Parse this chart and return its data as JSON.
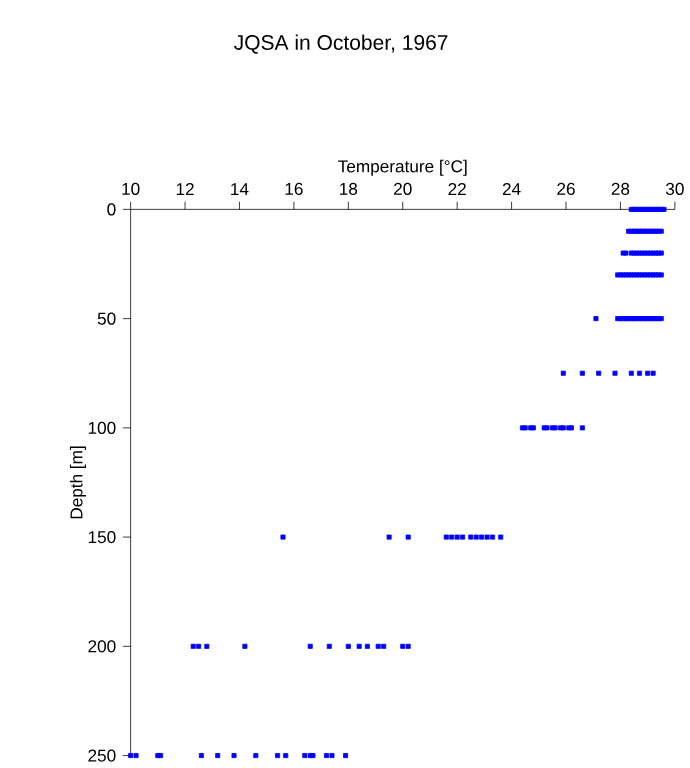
{
  "chart_data": {
    "type": "scatter",
    "title": "JQSA in October, 1967",
    "xlabel": "Temperature [°C]",
    "ylabel": "Depth [m]",
    "xlim": [
      10,
      30
    ],
    "xticks": [
      10,
      12,
      14,
      16,
      18,
      20,
      22,
      24,
      26,
      28,
      30
    ],
    "ylim": [
      250,
      0
    ],
    "yticks": [
      0,
      50,
      100,
      150,
      200,
      250
    ],
    "marker": "square",
    "series": [
      {
        "color": "#0000ff",
        "x": [
          28.4,
          28.5,
          28.6,
          28.7,
          28.8,
          28.9,
          29.0,
          29.1,
          29.2,
          29.3,
          29.4,
          29.5,
          29.6,
          28.3,
          28.4,
          28.5,
          28.6,
          28.7,
          28.8,
          28.9,
          29.0,
          29.1,
          29.2,
          29.3,
          29.4,
          29.5,
          28.1,
          28.2,
          28.4,
          28.5,
          28.6,
          28.7,
          28.8,
          28.9,
          29.0,
          29.1,
          29.2,
          29.3,
          29.4,
          29.5,
          27.9,
          28.0,
          28.1,
          28.2,
          28.3,
          28.4,
          28.5,
          28.6,
          28.7,
          28.8,
          28.9,
          29.0,
          29.1,
          29.2,
          29.3,
          29.4,
          29.5,
          27.1,
          27.9,
          28.0,
          28.1,
          28.2,
          28.3,
          28.4,
          28.5,
          28.6,
          28.7,
          28.8,
          28.9,
          29.0,
          29.1,
          29.2,
          29.3,
          29.4,
          29.5,
          25.9,
          26.6,
          27.2,
          27.8,
          28.4,
          28.7,
          29.0,
          29.2,
          24.4,
          24.5,
          24.7,
          24.8,
          25.2,
          25.3,
          25.5,
          25.6,
          25.8,
          25.9,
          26.1,
          26.2,
          26.6,
          15.6,
          19.5,
          20.2,
          21.6,
          21.8,
          22.0,
          22.2,
          22.5,
          22.7,
          22.9,
          23.1,
          23.3,
          23.6,
          12.3,
          12.5,
          12.8,
          14.2,
          16.6,
          17.3,
          18.0,
          18.4,
          18.7,
          19.1,
          19.3,
          20.0,
          20.2,
          10.0,
          10.2,
          11.0,
          11.1,
          12.6,
          13.2,
          13.8,
          14.6,
          15.4,
          15.7,
          16.4,
          16.6,
          16.7,
          17.2,
          17.4,
          17.9
        ],
        "values": [
          0,
          0,
          0,
          0,
          0,
          0,
          0,
          0,
          0,
          0,
          0,
          0,
          0,
          10,
          10,
          10,
          10,
          10,
          10,
          10,
          10,
          10,
          10,
          10,
          10,
          10,
          20,
          20,
          20,
          20,
          20,
          20,
          20,
          20,
          20,
          20,
          20,
          20,
          20,
          20,
          30,
          30,
          30,
          30,
          30,
          30,
          30,
          30,
          30,
          30,
          30,
          30,
          30,
          30,
          30,
          30,
          30,
          50,
          50,
          50,
          50,
          50,
          50,
          50,
          50,
          50,
          50,
          50,
          50,
          50,
          50,
          50,
          50,
          50,
          50,
          75,
          75,
          75,
          75,
          75,
          75,
          75,
          75,
          100,
          100,
          100,
          100,
          100,
          100,
          100,
          100,
          100,
          100,
          100,
          100,
          100,
          150,
          150,
          150,
          150,
          150,
          150,
          150,
          150,
          150,
          150,
          150,
          150,
          150,
          200,
          200,
          200,
          200,
          200,
          200,
          200,
          200,
          200,
          200,
          200,
          200,
          200,
          250,
          250,
          250,
          250,
          250,
          250,
          250,
          250,
          250,
          250,
          250,
          250,
          250,
          250,
          250,
          250
        ]
      }
    ]
  }
}
